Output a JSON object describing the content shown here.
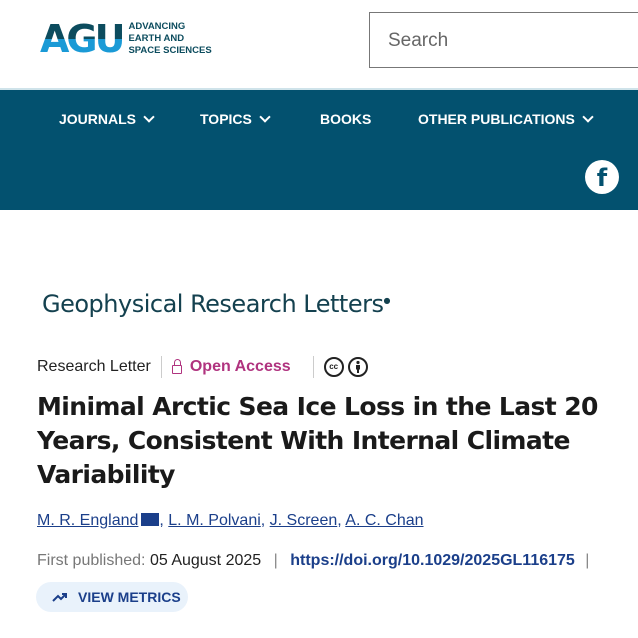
{
  "header": {
    "logo_text": "AGU",
    "logo_tagline": [
      "ADVANCING",
      "EARTH AND",
      "SPACE SCIENCES"
    ],
    "search_placeholder": "Search"
  },
  "nav": {
    "items": [
      {
        "label": "JOURNALS"
      },
      {
        "label": "TOPICS"
      },
      {
        "label": "BOOKS"
      },
      {
        "label": "OTHER PUBLICATIONS"
      }
    ],
    "social": "f"
  },
  "article": {
    "journal": "Geophysical Research Letters",
    "type": "Research Letter",
    "access": "Open Access",
    "license_icons": [
      "cc",
      "by"
    ],
    "title": "Minimal Arctic Sea Ice Loss in the Last 20 Years, Consistent With Internal Climate Variability",
    "authors": [
      "M. R. England",
      "L. M. Polvani",
      "J. Screen",
      "A. C. Chan"
    ],
    "published_label": "First published:",
    "published_date": "05 August 2025",
    "doi": "https://doi.org/10.1029/2025GL116175",
    "metrics_button": "VIEW METRICS"
  },
  "colors": {
    "nav_bg": "#03516f",
    "open_access": "#b0337f",
    "link": "#1b3f8a"
  }
}
